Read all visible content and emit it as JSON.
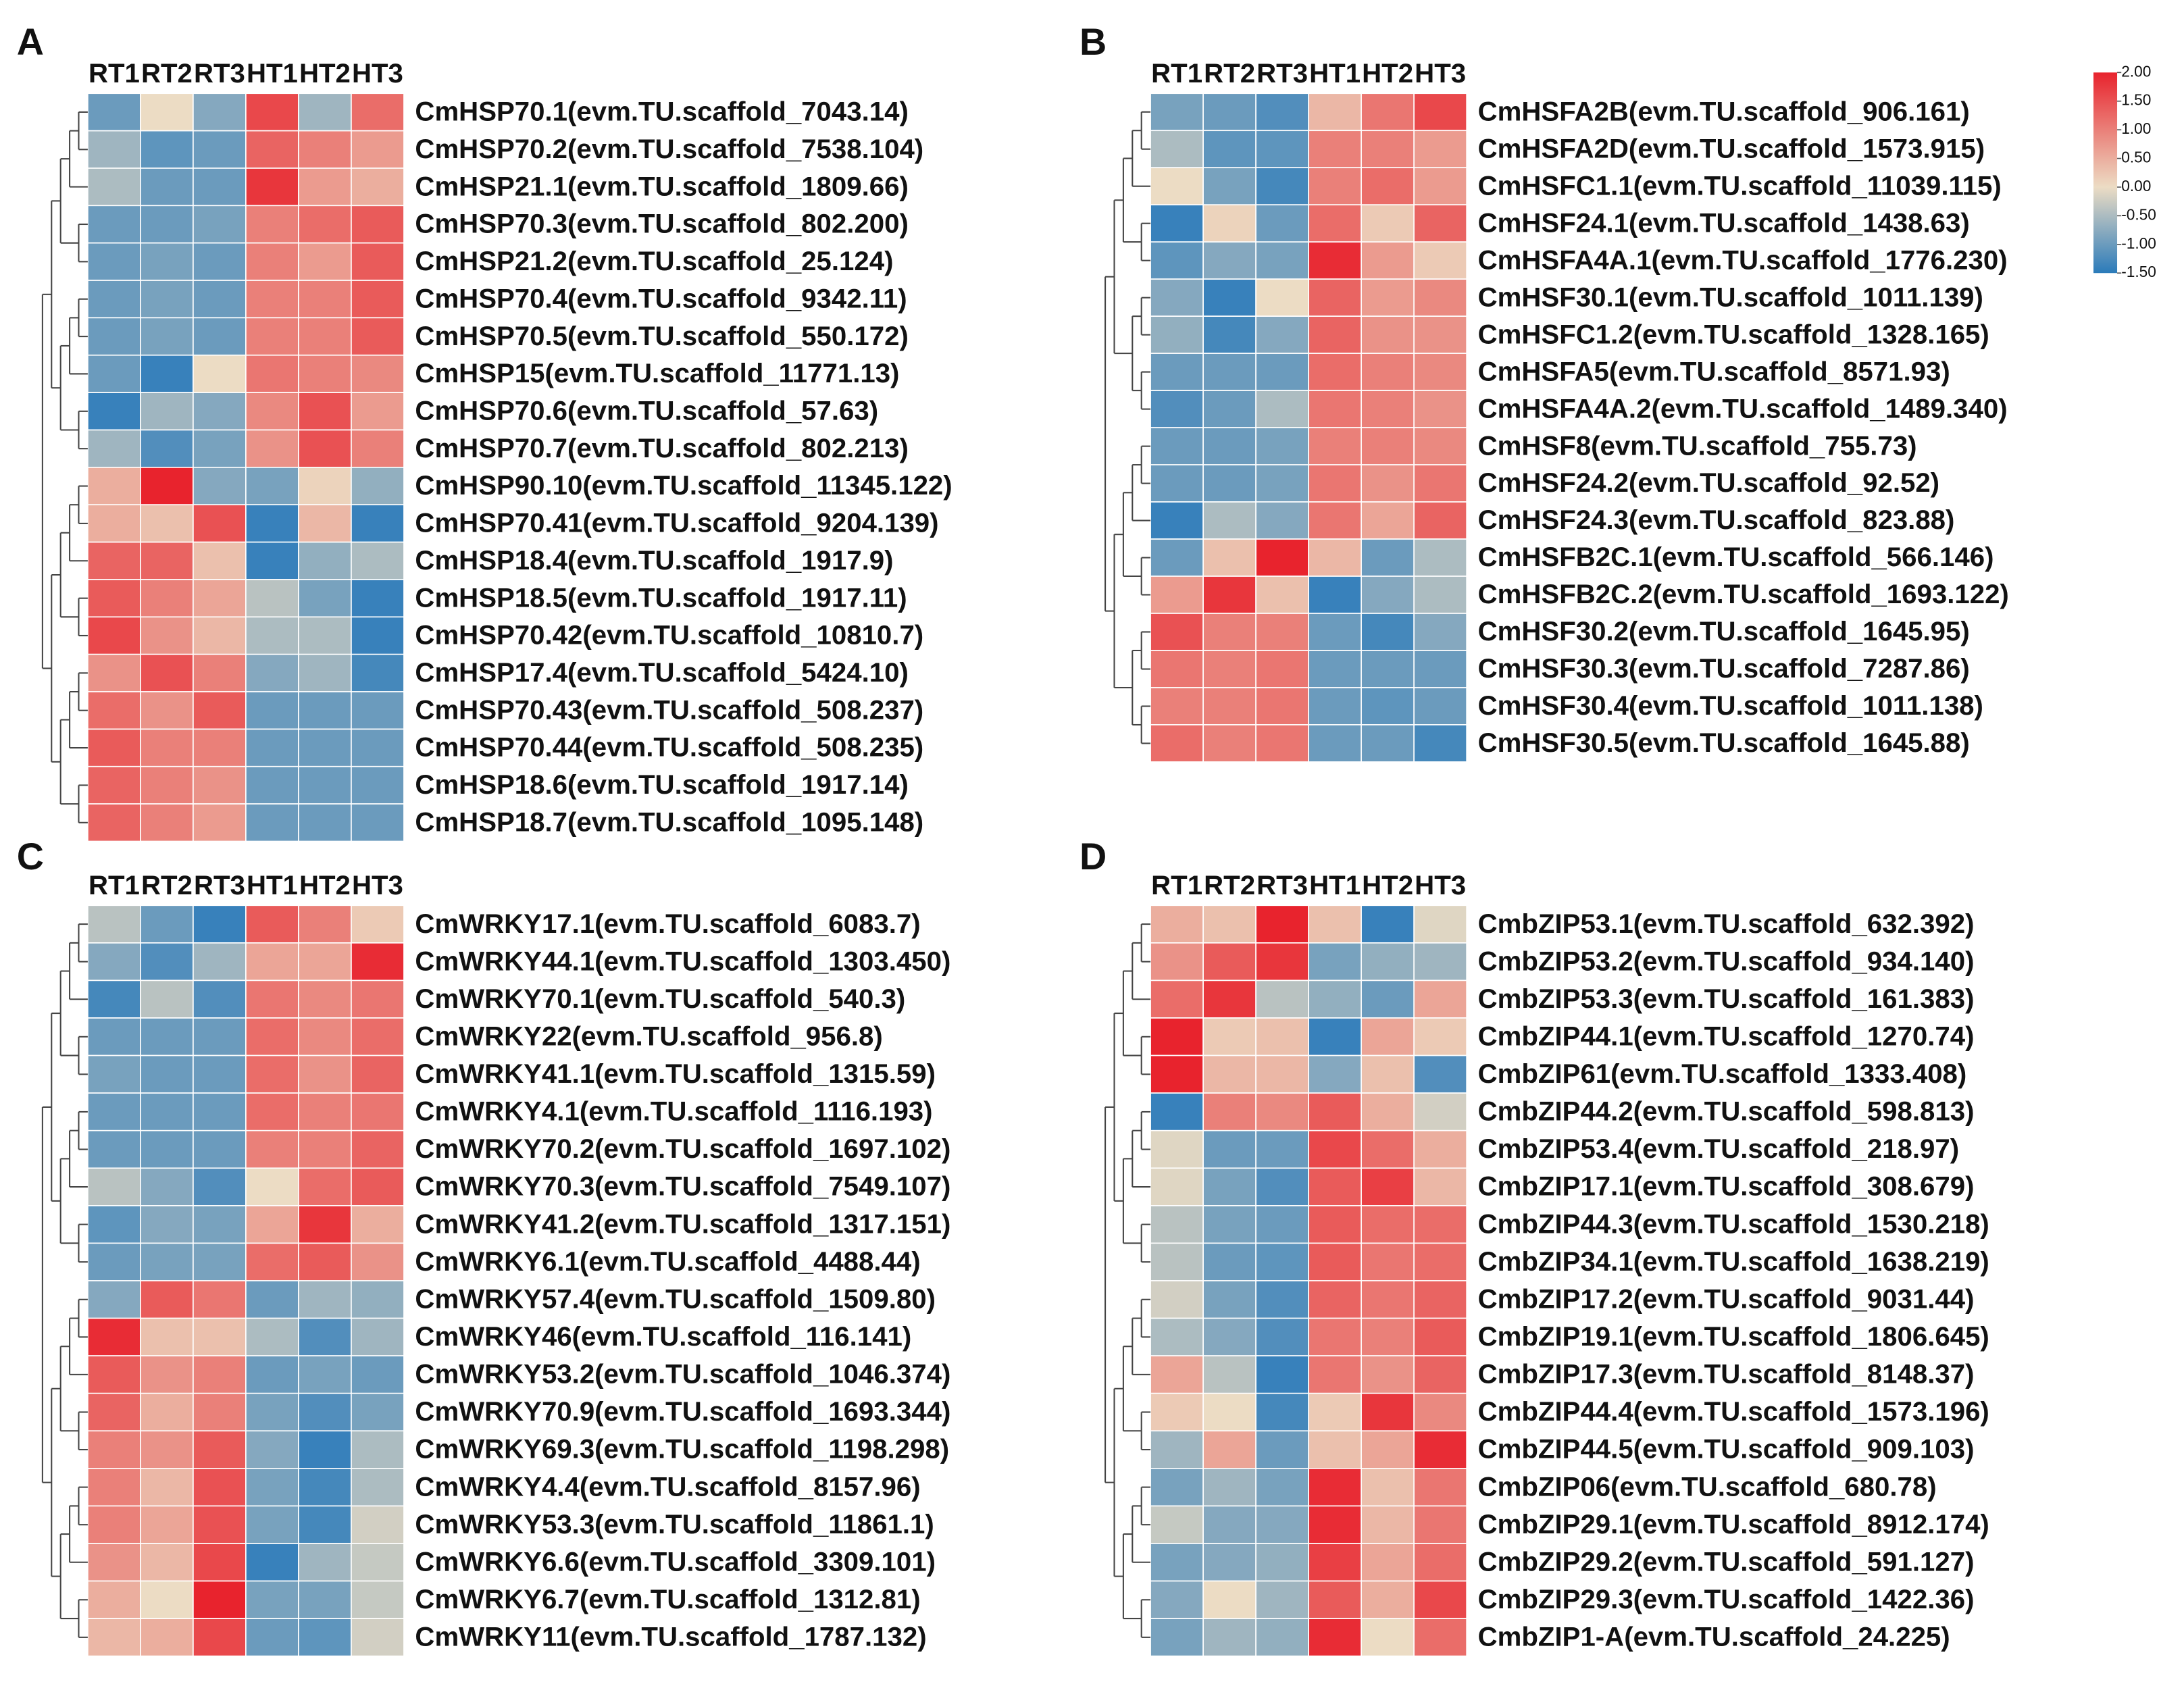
{
  "chart_data": [
    {
      "type": "heatmap",
      "panel": "A",
      "x": [
        "RT1",
        "RT2",
        "RT3",
        "HT1",
        "HT2",
        "HT3"
      ],
      "categories": [
        "CmHSP70.1(evm.TU.scaffold_7043.14)",
        "CmHSP70.2(evm.TU.scaffold_7538.104)",
        "CmHSP21.1(evm.TU.scaffold_1809.66)",
        "CmHSP70.3(evm.TU.scaffold_802.200)",
        "CmHSP21.2(evm.TU.scaffold_25.124)",
        "CmHSP70.4(evm.TU.scaffold_9342.11)",
        "CmHSP70.5(evm.TU.scaffold_550.172)",
        "CmHSP15(evm.TU.scaffold_11771.13)",
        "CmHSP70.6(evm.TU.scaffold_57.63)",
        "CmHSP70.7(evm.TU.scaffold_802.213)",
        "CmHSP90.10(evm.TU.scaffold_11345.122)",
        "CmHSP70.41(evm.TU.scaffold_9204.139)",
        "CmHSP18.4(evm.TU.scaffold_1917.9)",
        "CmHSP18.5(evm.TU.scaffold_1917.11)",
        "CmHSP70.42(evm.TU.scaffold_10810.7)",
        "CmHSP17.4(evm.TU.scaffold_5424.10)",
        "CmHSP70.43(evm.TU.scaffold_508.237)",
        "CmHSP70.44(evm.TU.scaffold_508.235)",
        "CmHSP18.6(evm.TU.scaffold_1917.14)",
        "CmHSP18.7(evm.TU.scaffold_1095.148)"
      ],
      "values": [
        [
          -1.0,
          0,
          -0.8,
          1.6,
          -0.6,
          1.2
        ],
        [
          -0.6,
          -1.1,
          -1.0,
          1.3,
          1.0,
          0.7
        ],
        [
          -0.5,
          -1.0,
          -1.0,
          1.8,
          0.7,
          0.5
        ],
        [
          -1.0,
          -1.0,
          -0.9,
          1.0,
          1.2,
          1.4
        ],
        [
          -1.0,
          -0.9,
          -1.0,
          1.0,
          0.7,
          1.4
        ],
        [
          -1.0,
          -0.9,
          -1.0,
          1.0,
          1.0,
          1.4
        ],
        [
          -1.0,
          -0.9,
          -1.0,
          1.0,
          1.0,
          1.4
        ],
        [
          -1.0,
          -1.4,
          0,
          1.1,
          1.0,
          0.9
        ],
        [
          -1.4,
          -0.6,
          -0.8,
          0.9,
          1.5,
          0.7
        ],
        [
          -0.6,
          -1.2,
          -0.9,
          0.8,
          1.5,
          1.0
        ],
        [
          0.5,
          2.0,
          -0.8,
          -0.9,
          0.1,
          -0.7
        ],
        [
          0.5,
          0.3,
          1.5,
          -1.4,
          0.4,
          -1.4
        ],
        [
          1.3,
          1.3,
          0.3,
          -1.4,
          -0.7,
          -0.5
        ],
        [
          1.4,
          1.0,
          0.6,
          -0.4,
          -0.9,
          -1.4
        ],
        [
          1.6,
          0.8,
          0.4,
          -0.5,
          -0.5,
          -1.4
        ],
        [
          0.8,
          1.5,
          1.0,
          -0.8,
          -0.6,
          -1.3
        ],
        [
          1.2,
          0.8,
          1.4,
          -1.0,
          -1.0,
          -1.0
        ],
        [
          1.4,
          1.0,
          1.0,
          -1.0,
          -1.0,
          -1.0
        ],
        [
          1.3,
          1.0,
          0.8,
          -1.0,
          -1.0,
          -1.0
        ],
        [
          1.3,
          1.0,
          0.7,
          -1.0,
          -1.0,
          -1.0
        ]
      ]
    },
    {
      "type": "heatmap",
      "panel": "B",
      "x": [
        "RT1",
        "RT2",
        "RT3",
        "HT1",
        "HT2",
        "HT3"
      ],
      "categories": [
        "CmHSFA2B(evm.TU.scaffold_906.161)",
        "CmHSFA2D(evm.TU.scaffold_1573.915)",
        "CmHSFC1.1(evm.TU.scaffold_11039.115)",
        "CmHSF24.1(evm.TU.scaffold_1438.63)",
        "CmHSFA4A.1(evm.TU.scaffold_1776.230)",
        "CmHSF30.1(evm.TU.scaffold_1011.139)",
        "CmHSFC1.2(evm.TU.scaffold_1328.165)",
        "CmHSFA5(evm.TU.scaffold_8571.93)",
        "CmHSFA4A.2(evm.TU.scaffold_1489.340)",
        "CmHSF8(evm.TU.scaffold_755.73)",
        "CmHSF24.2(evm.TU.scaffold_92.52)",
        "CmHSF24.3(evm.TU.scaffold_823.88)",
        "CmHSFB2C.1(evm.TU.scaffold_566.146)",
        "CmHSFB2C.2(evm.TU.scaffold_1693.122)",
        "CmHSF30.2(evm.TU.scaffold_1645.95)",
        "CmHSF30.3(evm.TU.scaffold_7287.86)",
        "CmHSF30.4(evm.TU.scaffold_1011.138)",
        "CmHSF30.5(evm.TU.scaffold_1645.88)"
      ],
      "values": [
        [
          -0.9,
          -1.0,
          -1.2,
          0.4,
          1.1,
          1.6
        ],
        [
          -0.5,
          -1.1,
          -1.1,
          1.0,
          1.0,
          0.7
        ],
        [
          0,
          -0.9,
          -1.3,
          1.0,
          1.2,
          0.7
        ],
        [
          -1.4,
          0.1,
          -1.0,
          1.2,
          0.2,
          1.3
        ],
        [
          -1.1,
          -0.8,
          -0.9,
          1.9,
          0.7,
          0.2
        ],
        [
          -0.8,
          -1.4,
          0,
          1.3,
          0.7,
          0.9
        ],
        [
          -0.7,
          -1.3,
          -0.8,
          1.3,
          0.8,
          0.8
        ],
        [
          -1.0,
          -1.0,
          -1.0,
          1.2,
          1.0,
          0.9
        ],
        [
          -1.2,
          -1.0,
          -0.5,
          1.1,
          1.0,
          0.8
        ],
        [
          -1.0,
          -1.0,
          -0.9,
          1.0,
          1.0,
          0.9
        ],
        [
          -1.0,
          -1.0,
          -0.9,
          1.1,
          0.8,
          1.1
        ],
        [
          -1.4,
          -0.5,
          -0.8,
          1.1,
          0.6,
          1.3
        ],
        [
          -1.0,
          0.3,
          2.0,
          0.4,
          -1.0,
          -0.5
        ],
        [
          0.7,
          1.8,
          0.3,
          -1.4,
          -0.8,
          -0.5
        ],
        [
          1.5,
          1.0,
          1.0,
          -1.0,
          -1.3,
          -0.8
        ],
        [
          1.1,
          1.0,
          1.1,
          -1.0,
          -1.0,
          -1.0
        ],
        [
          1.0,
          1.0,
          1.1,
          -1.0,
          -1.1,
          -1.0
        ],
        [
          1.2,
          1.0,
          1.1,
          -1.0,
          -1.0,
          -1.3
        ]
      ]
    },
    {
      "type": "heatmap",
      "panel": "C",
      "x": [
        "RT1",
        "RT2",
        "RT3",
        "HT1",
        "HT2",
        "HT3"
      ],
      "categories": [
        "CmWRKY17.1(evm.TU.scaffold_6083.7)",
        "CmWRKY44.1(evm.TU.scaffold_1303.450)",
        "CmWRKY70.1(evm.TU.scaffold_540.3)",
        "CmWRKY22(evm.TU.scaffold_956.8)",
        "CmWRKY41.1(evm.TU.scaffold_1315.59)",
        "CmWRKY4.1(evm.TU.scaffold_1116.193)",
        "CmWRKY70.2(evm.TU.scaffold_1697.102)",
        "CmWRKY70.3(evm.TU.scaffold_7549.107)",
        "CmWRKY41.2(evm.TU.scaffold_1317.151)",
        "CmWRKY6.1(evm.TU.scaffold_4488.44)",
        "CmWRKY57.4(evm.TU.scaffold_1509.80)",
        "CmWRKY46(evm.TU.scaffold_116.141)",
        "CmWRKY53.2(evm.TU.scaffold_1046.374)",
        "CmWRKY70.9(evm.TU.scaffold_1693.344)",
        "CmWRKY69.3(evm.TU.scaffold_1198.298)",
        "CmWRKY4.4(evm.TU.scaffold_8157.96)",
        "CmWRKY53.3(evm.TU.scaffold_11861.1)",
        "CmWRKY6.6(evm.TU.scaffold_3309.101)",
        "CmWRKY6.7(evm.TU.scaffold_1312.81)",
        "CmWRKY11(evm.TU.scaffold_1787.132)"
      ],
      "values": [
        [
          -0.4,
          -1.0,
          -1.4,
          1.4,
          1.0,
          0.2
        ],
        [
          -0.8,
          -1.2,
          -0.6,
          0.6,
          0.6,
          1.9
        ],
        [
          -1.3,
          -0.4,
          -1.2,
          1.1,
          0.9,
          1.1
        ],
        [
          -1.0,
          -1.0,
          -1.0,
          1.2,
          0.9,
          1.2
        ],
        [
          -0.9,
          -1.0,
          -1.0,
          1.2,
          0.8,
          1.3
        ],
        [
          -1.0,
          -1.0,
          -1.0,
          1.2,
          1.0,
          1.1
        ],
        [
          -1.0,
          -1.0,
          -1.0,
          1.0,
          1.0,
          1.3
        ],
        [
          -0.4,
          -0.8,
          -1.2,
          0,
          1.2,
          1.4
        ],
        [
          -1.1,
          -0.8,
          -0.9,
          0.6,
          1.8,
          0.5
        ],
        [
          -1.0,
          -0.9,
          -0.9,
          1.2,
          1.4,
          0.8
        ],
        [
          -0.8,
          1.4,
          1.1,
          -1.0,
          -0.6,
          -0.7
        ],
        [
          1.9,
          0.3,
          0.3,
          -0.5,
          -1.2,
          -0.6
        ],
        [
          1.4,
          0.8,
          1.0,
          -1.0,
          -0.9,
          -1.0
        ],
        [
          1.3,
          0.5,
          1.0,
          -0.9,
          -1.2,
          -0.9
        ],
        [
          1.0,
          0.8,
          1.4,
          -0.8,
          -1.4,
          -0.5
        ],
        [
          1.0,
          0.4,
          1.5,
          -0.9,
          -1.3,
          -0.5
        ],
        [
          1.0,
          0.6,
          1.5,
          -0.9,
          -1.3,
          -0.2
        ],
        [
          0.8,
          0.4,
          1.6,
          -1.4,
          -0.6,
          -0.3
        ],
        [
          0.5,
          0,
          2.0,
          -0.9,
          -0.9,
          -0.3
        ],
        [
          0.4,
          0.5,
          1.6,
          -1.0,
          -1.1,
          -0.2
        ]
      ]
    },
    {
      "type": "heatmap",
      "panel": "D",
      "x": [
        "RT1",
        "RT2",
        "RT3",
        "HT1",
        "HT2",
        "HT3"
      ],
      "categories": [
        "CmbZIP53.1(evm.TU.scaffold_632.392)",
        "CmbZIP53.2(evm.TU.scaffold_934.140)",
        "CmbZIP53.3(evm.TU.scaffold_161.383)",
        "CmbZIP44.1(evm.TU.scaffold_1270.74)",
        "CmbZIP61(evm.TU.scaffold_1333.408)",
        "CmbZIP44.2(evm.TU.scaffold_598.813)",
        "CmbZIP53.4(evm.TU.scaffold_218.97)",
        "CmbZIP17.1(evm.TU.scaffold_308.679)",
        "CmbZIP44.3(evm.TU.scaffold_1530.218)",
        "CmbZIP34.1(evm.TU.scaffold_1638.219)",
        "CmbZIP17.2(evm.TU.scaffold_9031.44)",
        "CmbZIP19.1(evm.TU.scaffold_1806.645)",
        "CmbZIP17.3(evm.TU.scaffold_8148.37)",
        "CmbZIP44.4(evm.TU.scaffold_1573.196)",
        "CmbZIP44.5(evm.TU.scaffold_909.103)",
        "CmbZIP06(evm.TU.scaffold_680.78)",
        "CmbZIP29.1(evm.TU.scaffold_8912.174)",
        "CmbZIP29.2(evm.TU.scaffold_591.127)",
        "CmbZIP29.3(evm.TU.scaffold_1422.36)",
        "CmbZIP1-A(evm.TU.scaffold_24.225)"
      ],
      "values": [
        [
          0.5,
          0.3,
          2.0,
          0.3,
          -1.4,
          -0.1
        ],
        [
          0.8,
          1.4,
          1.8,
          -0.9,
          -0.7,
          -0.6
        ],
        [
          1.2,
          1.8,
          -0.4,
          -0.7,
          -1.0,
          0.6
        ],
        [
          2.0,
          0.2,
          0.3,
          -1.4,
          0.6,
          0.2
        ],
        [
          2.0,
          0.4,
          0.4,
          -0.8,
          0.3,
          -1.2
        ],
        [
          -1.4,
          1.0,
          0.9,
          1.4,
          0.5,
          -0.2
        ],
        [
          -0.1,
          -1.0,
          -1.0,
          1.6,
          1.2,
          0.5
        ],
        [
          -0.1,
          -0.9,
          -1.2,
          1.4,
          1.7,
          0.4
        ],
        [
          -0.4,
          -0.9,
          -1.0,
          1.4,
          1.2,
          1.2
        ],
        [
          -0.4,
          -1.0,
          -1.1,
          1.4,
          1.1,
          1.2
        ],
        [
          -0.2,
          -0.9,
          -1.2,
          1.3,
          1.1,
          1.3
        ],
        [
          -0.5,
          -0.8,
          -1.2,
          1.1,
          1.0,
          1.4
        ],
        [
          0.6,
          -0.4,
          -1.4,
          1.1,
          0.8,
          1.3
        ],
        [
          0.2,
          0,
          -1.3,
          0.2,
          1.8,
          0.9
        ],
        [
          -0.6,
          0.6,
          -1.0,
          0.3,
          0.6,
          1.9
        ],
        [
          -0.9,
          -0.6,
          -0.9,
          1.9,
          0.3,
          1.1
        ],
        [
          -0.3,
          -0.8,
          -0.8,
          1.9,
          0.4,
          1.1
        ],
        [
          -0.9,
          -0.8,
          -0.7,
          1.7,
          0.6,
          1.2
        ],
        [
          -0.8,
          0,
          -0.6,
          1.4,
          0.5,
          1.6
        ],
        [
          -0.9,
          -0.6,
          -0.7,
          1.9,
          0,
          1.2
        ]
      ]
    }
  ],
  "color_scale": {
    "lim": [
      -1.5,
      2.0
    ],
    "colors": [
      "#2b7bba",
      "#ecdcc4",
      "#e8232d"
    ],
    "ticks": [
      {
        "value": 2.0,
        "label": "2.00"
      },
      {
        "value": 1.5,
        "label": "1.50"
      },
      {
        "value": 1.0,
        "label": "1.00"
      },
      {
        "value": 0.5,
        "label": "0.50"
      },
      {
        "value": 0,
        "label": "0.00"
      },
      {
        "value": -0.5,
        "label": "-0.50"
      },
      {
        "value": -1.0,
        "label": "-1.00"
      },
      {
        "value": -1.5,
        "label": "-1.50"
      }
    ]
  }
}
